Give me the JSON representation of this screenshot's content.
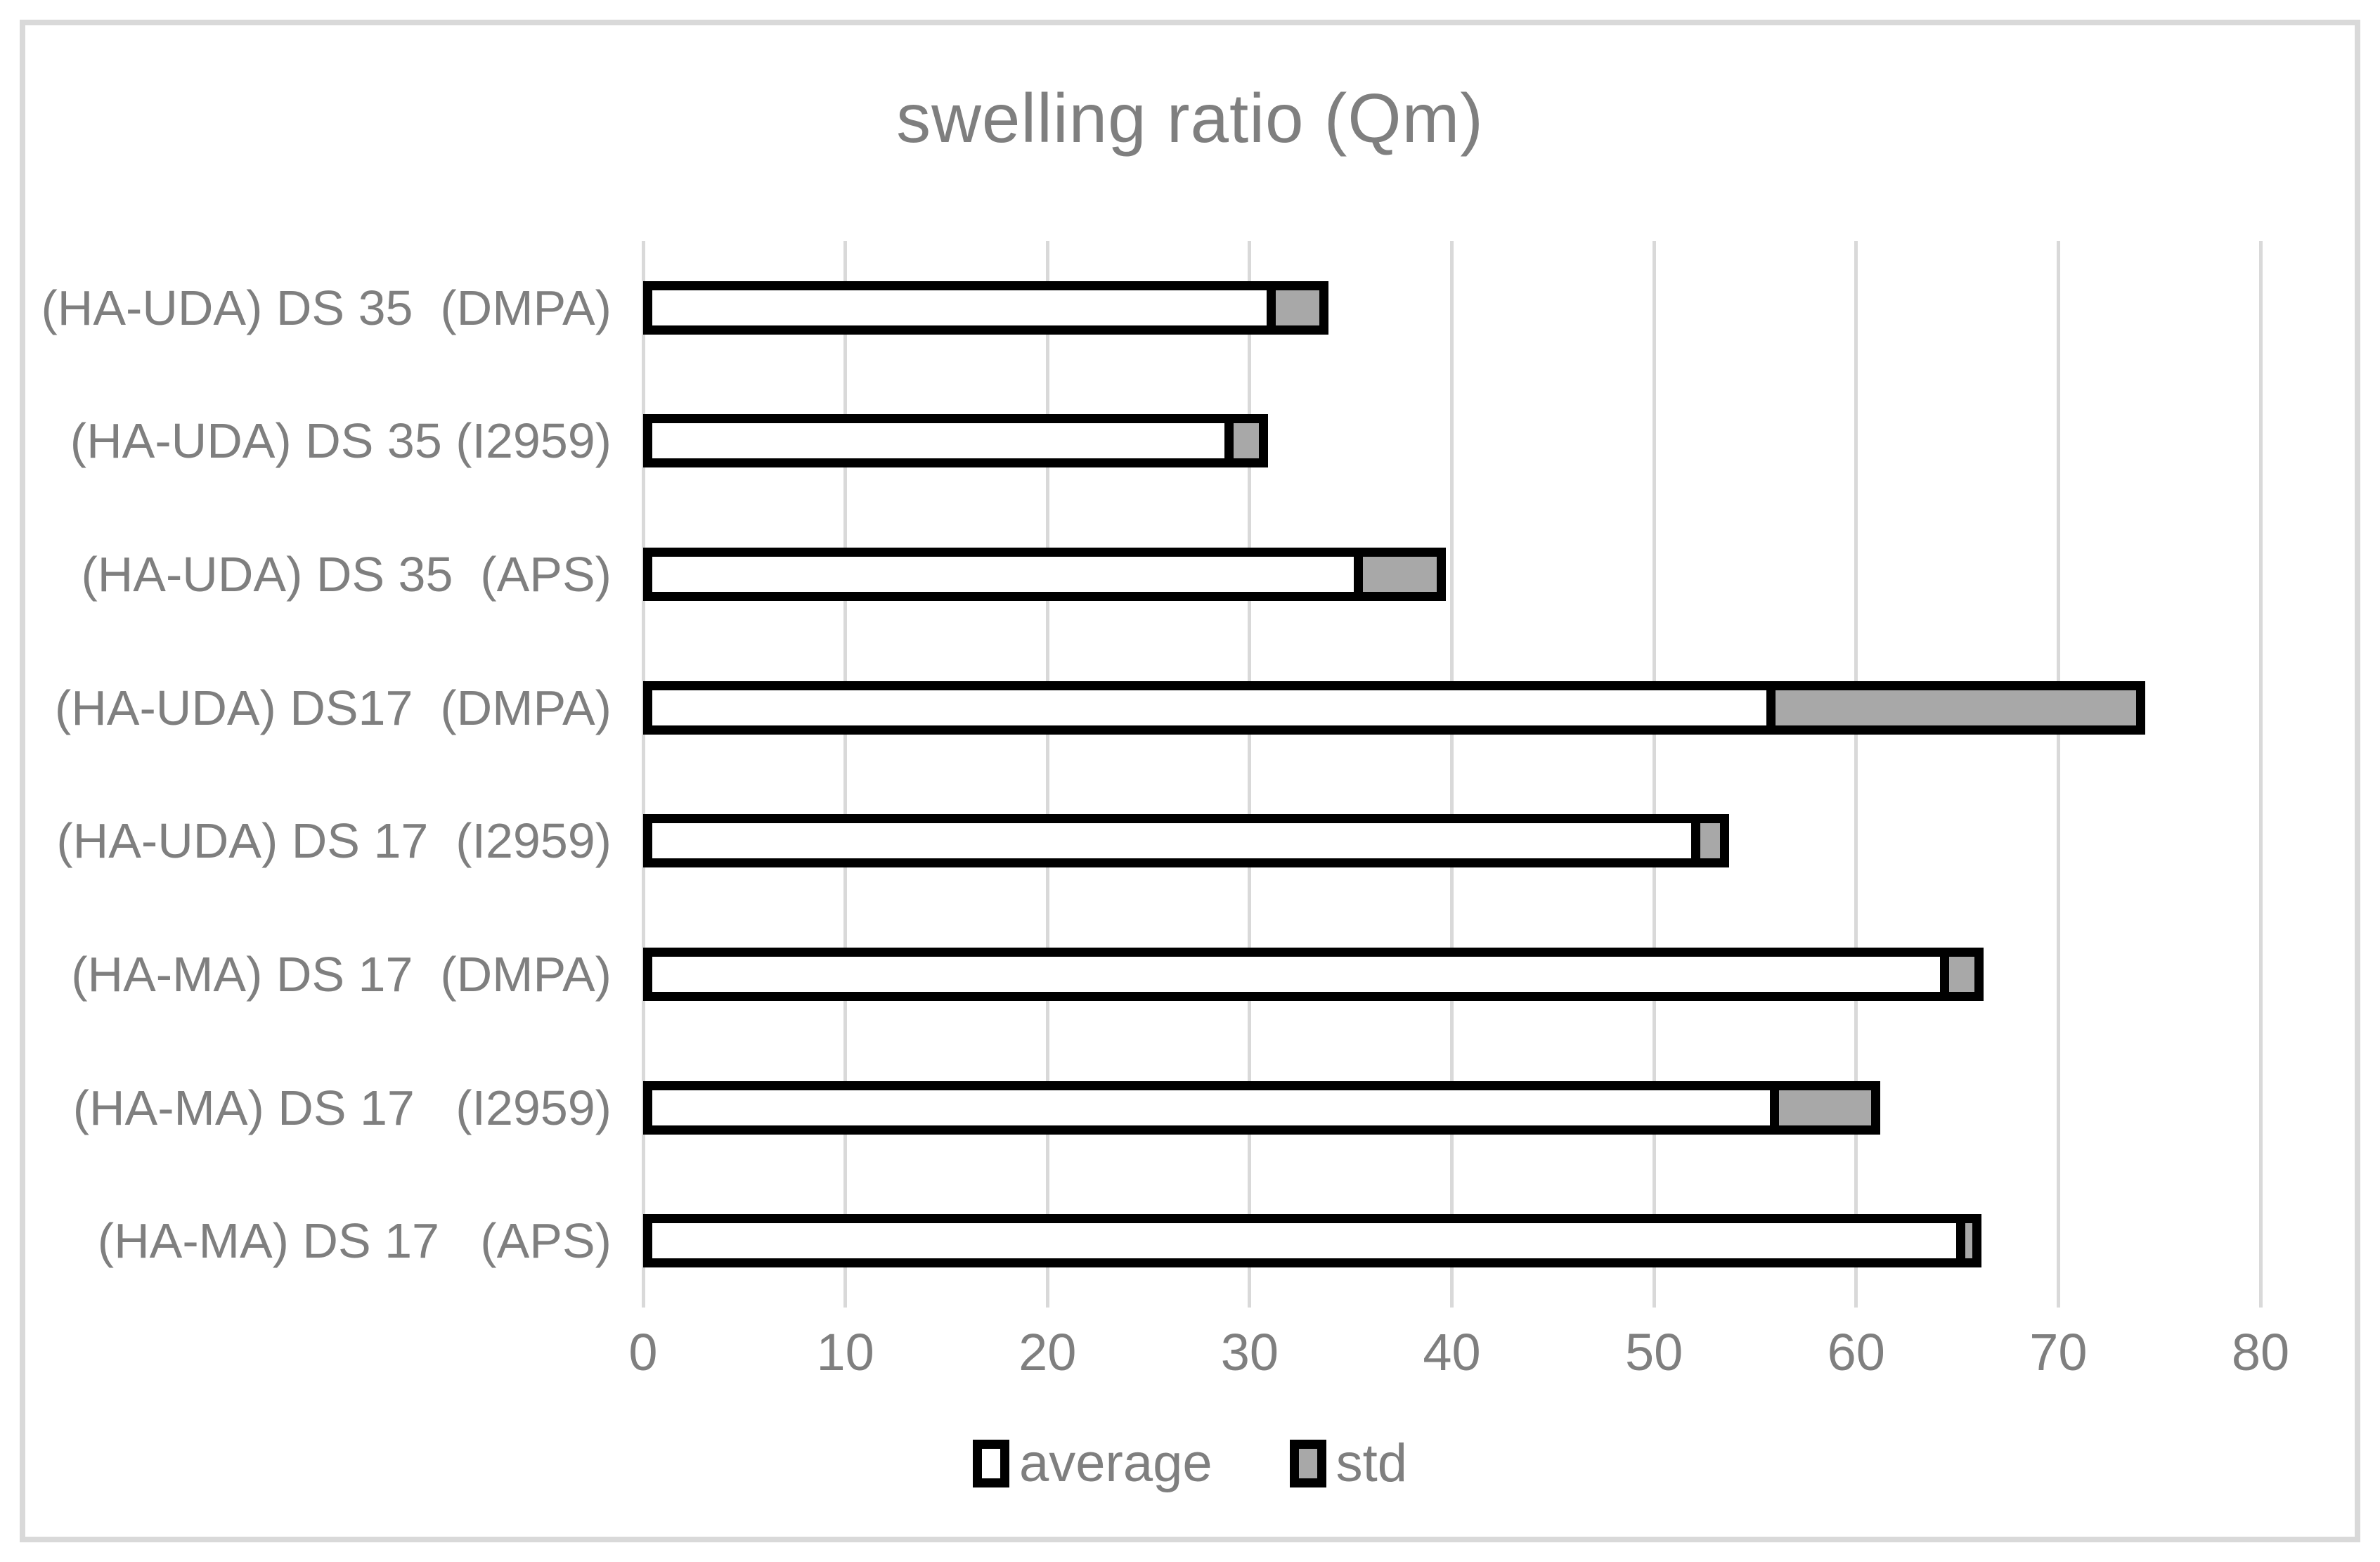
{
  "title": "swelling ratio (Qm)",
  "colors": {
    "title_text": "#7f7f7f",
    "axis_text": "#7f7f7f",
    "gridline": "#d9d9d9",
    "frame_border": "#d9d9d9",
    "bar_border": "#000000",
    "average_fill": "#ffffff",
    "std_fill": "#a8a8a8"
  },
  "legend": {
    "position": "bottom",
    "items": [
      {
        "label": "average",
        "fill": "#ffffff"
      },
      {
        "label": "std",
        "fill": "#a8a8a8"
      }
    ]
  },
  "chart_data": {
    "type": "bar",
    "orientation": "horizontal",
    "stacked": true,
    "title": "swelling ratio (Qm)",
    "xlabel": "",
    "ylabel": "",
    "xlim": [
      0,
      80
    ],
    "x_ticks": [
      0,
      10,
      20,
      30,
      40,
      50,
      60,
      70,
      80
    ],
    "grid": "vertical",
    "legend_position": "bottom",
    "categories": [
      "(HA-UDA) DS 35  (DMPA)",
      "(HA-UDA) DS 35 (I2959)",
      "(HA-UDA) DS 35  (APS)",
      "(HA-UDA) DS17  (DMPA)",
      "(HA-UDA) DS 17  (I2959)",
      "(HA-MA) DS 17  (DMPA)",
      "(HA-MA) DS 17   (I2959)",
      "(HA-MA) DS 17   (APS)"
    ],
    "series": [
      {
        "name": "average",
        "values": [
          31.3,
          29.2,
          35.6,
          56.0,
          52.3,
          64.6,
          56.2,
          65.4
        ]
      },
      {
        "name": "std",
        "values": [
          2.6,
          1.7,
          4.1,
          18.3,
          1.4,
          1.7,
          5.0,
          0.8
        ]
      }
    ]
  }
}
